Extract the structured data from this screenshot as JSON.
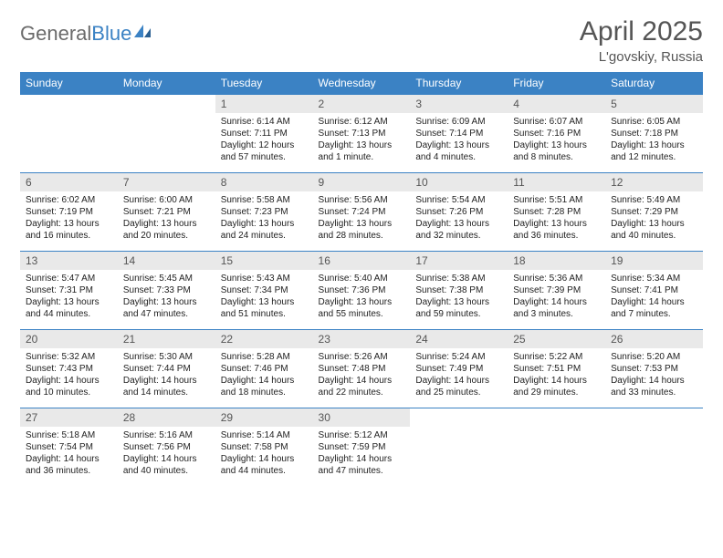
{
  "logo": {
    "word1": "General",
    "word2": "Blue"
  },
  "title": "April 2025",
  "subtitle": "L'govskiy, Russia",
  "header_color": "#3b82c4",
  "daynum_bg": "#e9e9e9",
  "text_color": "#555555",
  "days": [
    "Sunday",
    "Monday",
    "Tuesday",
    "Wednesday",
    "Thursday",
    "Friday",
    "Saturday"
  ],
  "cells": [
    {
      "n": "",
      "sr": "",
      "ss": "",
      "dl": ""
    },
    {
      "n": "",
      "sr": "",
      "ss": "",
      "dl": ""
    },
    {
      "n": "1",
      "sr": "Sunrise: 6:14 AM",
      "ss": "Sunset: 7:11 PM",
      "dl": "Daylight: 12 hours and 57 minutes."
    },
    {
      "n": "2",
      "sr": "Sunrise: 6:12 AM",
      "ss": "Sunset: 7:13 PM",
      "dl": "Daylight: 13 hours and 1 minute."
    },
    {
      "n": "3",
      "sr": "Sunrise: 6:09 AM",
      "ss": "Sunset: 7:14 PM",
      "dl": "Daylight: 13 hours and 4 minutes."
    },
    {
      "n": "4",
      "sr": "Sunrise: 6:07 AM",
      "ss": "Sunset: 7:16 PM",
      "dl": "Daylight: 13 hours and 8 minutes."
    },
    {
      "n": "5",
      "sr": "Sunrise: 6:05 AM",
      "ss": "Sunset: 7:18 PM",
      "dl": "Daylight: 13 hours and 12 minutes."
    },
    {
      "n": "6",
      "sr": "Sunrise: 6:02 AM",
      "ss": "Sunset: 7:19 PM",
      "dl": "Daylight: 13 hours and 16 minutes."
    },
    {
      "n": "7",
      "sr": "Sunrise: 6:00 AM",
      "ss": "Sunset: 7:21 PM",
      "dl": "Daylight: 13 hours and 20 minutes."
    },
    {
      "n": "8",
      "sr": "Sunrise: 5:58 AM",
      "ss": "Sunset: 7:23 PM",
      "dl": "Daylight: 13 hours and 24 minutes."
    },
    {
      "n": "9",
      "sr": "Sunrise: 5:56 AM",
      "ss": "Sunset: 7:24 PM",
      "dl": "Daylight: 13 hours and 28 minutes."
    },
    {
      "n": "10",
      "sr": "Sunrise: 5:54 AM",
      "ss": "Sunset: 7:26 PM",
      "dl": "Daylight: 13 hours and 32 minutes."
    },
    {
      "n": "11",
      "sr": "Sunrise: 5:51 AM",
      "ss": "Sunset: 7:28 PM",
      "dl": "Daylight: 13 hours and 36 minutes."
    },
    {
      "n": "12",
      "sr": "Sunrise: 5:49 AM",
      "ss": "Sunset: 7:29 PM",
      "dl": "Daylight: 13 hours and 40 minutes."
    },
    {
      "n": "13",
      "sr": "Sunrise: 5:47 AM",
      "ss": "Sunset: 7:31 PM",
      "dl": "Daylight: 13 hours and 44 minutes."
    },
    {
      "n": "14",
      "sr": "Sunrise: 5:45 AM",
      "ss": "Sunset: 7:33 PM",
      "dl": "Daylight: 13 hours and 47 minutes."
    },
    {
      "n": "15",
      "sr": "Sunrise: 5:43 AM",
      "ss": "Sunset: 7:34 PM",
      "dl": "Daylight: 13 hours and 51 minutes."
    },
    {
      "n": "16",
      "sr": "Sunrise: 5:40 AM",
      "ss": "Sunset: 7:36 PM",
      "dl": "Daylight: 13 hours and 55 minutes."
    },
    {
      "n": "17",
      "sr": "Sunrise: 5:38 AM",
      "ss": "Sunset: 7:38 PM",
      "dl": "Daylight: 13 hours and 59 minutes."
    },
    {
      "n": "18",
      "sr": "Sunrise: 5:36 AM",
      "ss": "Sunset: 7:39 PM",
      "dl": "Daylight: 14 hours and 3 minutes."
    },
    {
      "n": "19",
      "sr": "Sunrise: 5:34 AM",
      "ss": "Sunset: 7:41 PM",
      "dl": "Daylight: 14 hours and 7 minutes."
    },
    {
      "n": "20",
      "sr": "Sunrise: 5:32 AM",
      "ss": "Sunset: 7:43 PM",
      "dl": "Daylight: 14 hours and 10 minutes."
    },
    {
      "n": "21",
      "sr": "Sunrise: 5:30 AM",
      "ss": "Sunset: 7:44 PM",
      "dl": "Daylight: 14 hours and 14 minutes."
    },
    {
      "n": "22",
      "sr": "Sunrise: 5:28 AM",
      "ss": "Sunset: 7:46 PM",
      "dl": "Daylight: 14 hours and 18 minutes."
    },
    {
      "n": "23",
      "sr": "Sunrise: 5:26 AM",
      "ss": "Sunset: 7:48 PM",
      "dl": "Daylight: 14 hours and 22 minutes."
    },
    {
      "n": "24",
      "sr": "Sunrise: 5:24 AM",
      "ss": "Sunset: 7:49 PM",
      "dl": "Daylight: 14 hours and 25 minutes."
    },
    {
      "n": "25",
      "sr": "Sunrise: 5:22 AM",
      "ss": "Sunset: 7:51 PM",
      "dl": "Daylight: 14 hours and 29 minutes."
    },
    {
      "n": "26",
      "sr": "Sunrise: 5:20 AM",
      "ss": "Sunset: 7:53 PM",
      "dl": "Daylight: 14 hours and 33 minutes."
    },
    {
      "n": "27",
      "sr": "Sunrise: 5:18 AM",
      "ss": "Sunset: 7:54 PM",
      "dl": "Daylight: 14 hours and 36 minutes."
    },
    {
      "n": "28",
      "sr": "Sunrise: 5:16 AM",
      "ss": "Sunset: 7:56 PM",
      "dl": "Daylight: 14 hours and 40 minutes."
    },
    {
      "n": "29",
      "sr": "Sunrise: 5:14 AM",
      "ss": "Sunset: 7:58 PM",
      "dl": "Daylight: 14 hours and 44 minutes."
    },
    {
      "n": "30",
      "sr": "Sunrise: 5:12 AM",
      "ss": "Sunset: 7:59 PM",
      "dl": "Daylight: 14 hours and 47 minutes."
    },
    {
      "n": "",
      "sr": "",
      "ss": "",
      "dl": ""
    },
    {
      "n": "",
      "sr": "",
      "ss": "",
      "dl": ""
    },
    {
      "n": "",
      "sr": "",
      "ss": "",
      "dl": ""
    }
  ]
}
